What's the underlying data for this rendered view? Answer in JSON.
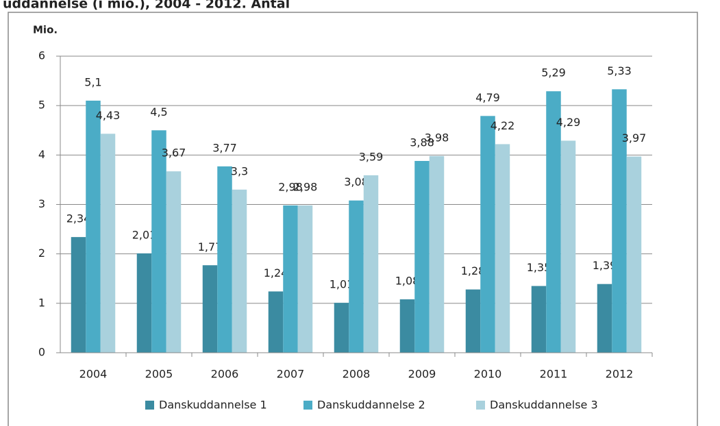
{
  "chart_data": {
    "type": "bar",
    "title": "uddannelse (i mio.), 2004 - 2012. Antal",
    "y_label": "Mio.",
    "categories": [
      "2004",
      "2005",
      "2006",
      "2007",
      "2008",
      "2009",
      "2010",
      "2011",
      "2012"
    ],
    "series": [
      {
        "name": "Danskuddannelse 1",
        "color": "#3b8ba1",
        "values": [
          2.34,
          2.01,
          1.77,
          1.24,
          1.01,
          1.08,
          1.28,
          1.35,
          1.39
        ],
        "value_labels": [
          "2,34",
          "2,01",
          "1,77",
          "1,24",
          "1,01",
          "1,08",
          "1,28",
          "1,35",
          "1,39"
        ]
      },
      {
        "name": "Danskuddannelse 2",
        "color": "#4bacc6",
        "values": [
          5.1,
          4.5,
          3.77,
          2.98,
          3.08,
          3.88,
          4.79,
          5.29,
          5.33
        ],
        "value_labels": [
          "5,1",
          "4,5",
          "3,77",
          "2,98",
          "3,08",
          "3,88",
          "4,79",
          "5,29",
          "5,33"
        ]
      },
      {
        "name": "Danskuddannelse 3",
        "color": "#a9d1dd",
        "values": [
          4.43,
          3.67,
          3.3,
          2.98,
          3.59,
          3.98,
          4.22,
          4.29,
          3.97
        ],
        "value_labels": [
          "4,43",
          "3,67",
          "3,3",
          "2,98",
          "3,59",
          "3,98",
          "4,22",
          "4,29",
          "3,97"
        ]
      }
    ],
    "ylim": [
      0,
      6
    ],
    "yticks": [
      0,
      1,
      2,
      3,
      4,
      5,
      6
    ],
    "grid": true,
    "legend": "bottom"
  }
}
